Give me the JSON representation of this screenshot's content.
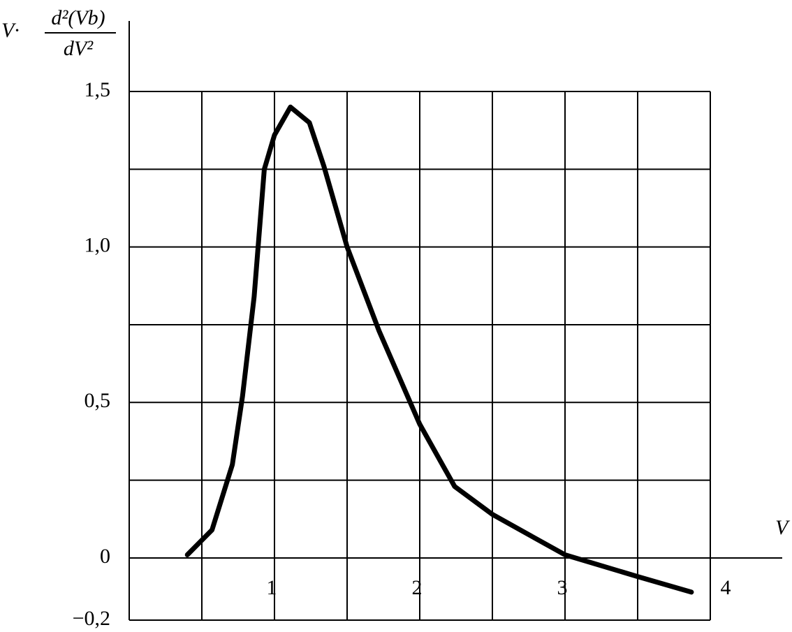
{
  "chart_data": {
    "type": "line",
    "y_label": {
      "prefix": "V·",
      "numerator": "d²(Vb)",
      "denominator": "dV²"
    },
    "x_label": "V",
    "xlim": [
      0,
      4
    ],
    "ylim": [
      -0.2,
      1.5
    ],
    "xticks": [
      1,
      2,
      3,
      4
    ],
    "yticks": [
      {
        "value": -0.2,
        "label": "−0,2"
      },
      0,
      {
        "value": 0.5,
        "label": "0,5"
      },
      {
        "value": 1.0,
        "label": "1,0"
      },
      {
        "value": 1.5,
        "label": "1,5"
      }
    ],
    "grid": true,
    "minor_grid": true,
    "series": [
      {
        "color": "#000000",
        "x": [
          0.4,
          0.57,
          0.71,
          0.78,
          0.86,
          0.93,
          1.0,
          1.11,
          1.24,
          1.34,
          1.5,
          1.72,
          2.0,
          2.24,
          2.5,
          3.0,
          3.5,
          3.87
        ],
        "values": [
          0.01,
          0.09,
          0.3,
          0.52,
          0.84,
          1.25,
          1.36,
          1.45,
          1.4,
          1.26,
          1.0,
          0.73,
          0.43,
          0.23,
          0.14,
          0.01,
          -0.06,
          -0.11
        ]
      }
    ]
  }
}
